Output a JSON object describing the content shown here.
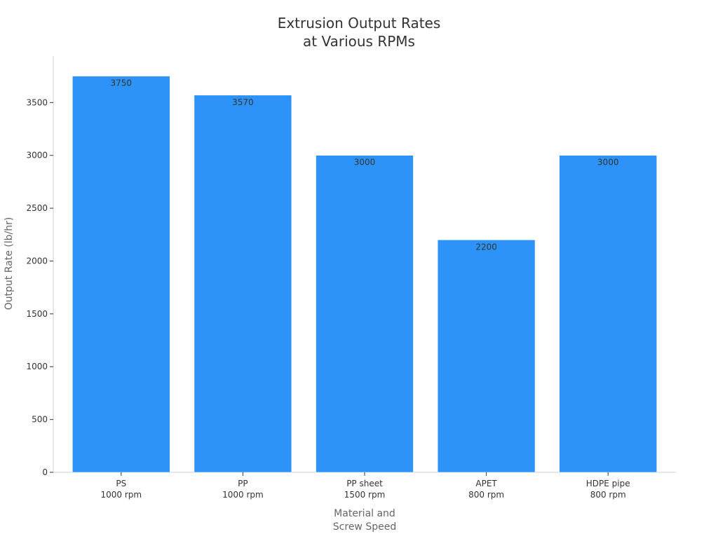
{
  "chart_data": {
    "type": "bar",
    "title_lines": [
      "Extrusion Output Rates",
      "at Various RPMs"
    ],
    "xlabel_lines": [
      "Material and",
      "Screw Speed"
    ],
    "ylabel": "Output Rate (lb/hr)",
    "categories": [
      [
        "PS",
        "1000 rpm"
      ],
      [
        "PP",
        "1000 rpm"
      ],
      [
        "PP sheet",
        "1500 rpm"
      ],
      [
        "APET",
        "800 rpm"
      ],
      [
        "HDPE pipe",
        "800 rpm"
      ]
    ],
    "values": [
      3750,
      3570,
      3000,
      2200,
      3000
    ],
    "data_labels": [
      "3750",
      "3570",
      "3000",
      "2200",
      "3000"
    ],
    "ylim": [
      0,
      3940
    ],
    "yticks": [
      0,
      500,
      1000,
      1500,
      2000,
      2500,
      3000,
      3500
    ],
    "grid": false,
    "legend": "none",
    "colors": {
      "bar": "#2e93f8",
      "bar_edge": "#ffffff",
      "text": "#333333",
      "axis_label": "#666666",
      "axis_line": "#cccccc"
    }
  }
}
